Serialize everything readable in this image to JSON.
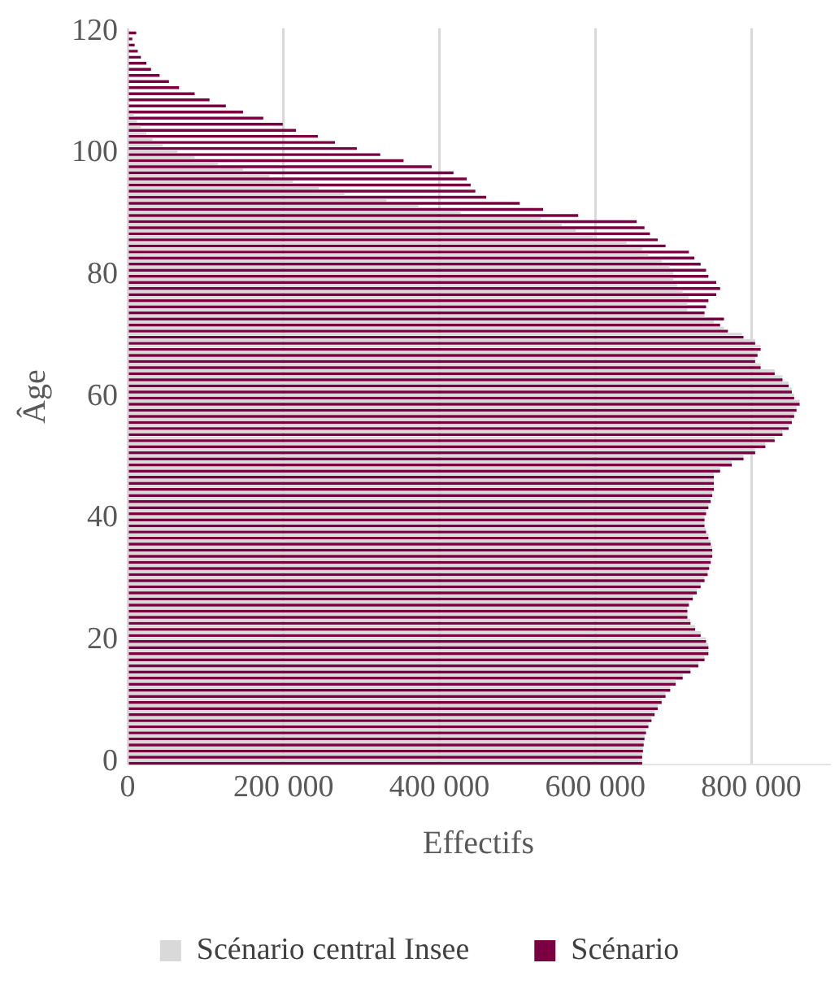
{
  "chart_data": {
    "type": "bar",
    "orientation": "horizontal",
    "xlabel": "Effectifs",
    "ylabel": "Âge",
    "categories": [
      "120",
      null,
      null,
      null,
      null,
      null,
      null,
      null,
      null,
      null,
      null,
      null,
      null,
      null,
      null,
      null,
      null,
      null,
      null,
      null,
      "100",
      null,
      null,
      null,
      null,
      null,
      null,
      null,
      null,
      null,
      null,
      null,
      null,
      null,
      null,
      null,
      null,
      null,
      null,
      null,
      "80",
      null,
      null,
      null,
      null,
      null,
      null,
      null,
      null,
      null,
      null,
      null,
      null,
      null,
      null,
      null,
      null,
      null,
      null,
      null,
      "60",
      null,
      null,
      null,
      null,
      null,
      null,
      null,
      null,
      null,
      null,
      null,
      null,
      null,
      null,
      null,
      null,
      null,
      null,
      null,
      "40",
      null,
      null,
      null,
      null,
      null,
      null,
      null,
      null,
      null,
      null,
      null,
      null,
      null,
      null,
      null,
      null,
      null,
      null,
      null,
      "20",
      null,
      null,
      null,
      null,
      null,
      null,
      null,
      null,
      null,
      null,
      null,
      null,
      null,
      null,
      null,
      null,
      null,
      null,
      null,
      "0"
    ],
    "series": [
      {
        "name": "Scénario central Insee",
        "color": "#d9d9d9",
        "values": [
          0,
          0,
          0,
          0,
          0,
          0,
          0,
          0,
          0,
          null,
          null,
          null,
          null,
          null,
          8000,
          12000,
          17000,
          24000,
          32000,
          45000,
          64000,
          86000,
          116000,
          148000,
          182000,
          212000,
          245000,
          278000,
          332000,
          373000,
          427000,
          530000,
          557000,
          575000,
          598000,
          640000,
          660000,
          668000,
          685000,
          695000,
          700000,
          700000,
          705000,
          712000,
          720000,
          718000,
          718000,
          740000,
          752000,
          765000,
          788000,
          805000,
          812000,
          808000,
          805000,
          812000,
          830000,
          840000,
          848000,
          852000,
          855000,
          862000,
          858000,
          855000,
          852000,
          848000,
          840000,
          830000,
          818000,
          805000,
          790000,
          775000,
          760000,
          752000,
          752000,
          752000,
          750000,
          748000,
          745000,
          742000,
          740000,
          740000,
          742000,
          745000,
          748000,
          750000,
          750000,
          748000,
          746000,
          744000,
          740000,
          735000,
          730000,
          725000,
          720000,
          718000,
          718000,
          722000,
          728000,
          735000,
          742000,
          745000,
          745000,
          740000,
          732000,
          722000,
          712000,
          703000,
          696000,
          690000,
          685000,
          680000,
          676000,
          672000,
          668000,
          665000,
          663000,
          662000,
          661000,
          660000,
          660000
        ]
      },
      {
        "name": "Scénario",
        "color": "#7b0041",
        "values": [
          11000,
          6000,
          9000,
          13000,
          17000,
          24000,
          30000,
          41000,
          53000,
          66000,
          86000,
          105000,
          126000,
          148000,
          174000,
          199000,
          216000,
          244000,
          266000,
          294000,
          324000,
          354000,
          390000,
          418000,
          435000,
          440000,
          446000,
          460000,
          503000,
          533000,
          578000,
          653000,
          663000,
          670000,
          680000,
          690000,
          720000,
          727000,
          735000,
          742000,
          745000,
          755000,
          760000,
          755000,
          745000,
          742000,
          740000,
          765000,
          760000,
          770000,
          790000,
          805000,
          812000,
          808000,
          805000,
          812000,
          830000,
          840000,
          848000,
          852000,
          855000,
          862000,
          858000,
          855000,
          852000,
          848000,
          840000,
          830000,
          818000,
          805000,
          790000,
          775000,
          760000,
          752000,
          752000,
          752000,
          750000,
          748000,
          745000,
          742000,
          740000,
          740000,
          742000,
          745000,
          748000,
          750000,
          750000,
          748000,
          746000,
          744000,
          740000,
          735000,
          730000,
          725000,
          720000,
          718000,
          718000,
          722000,
          728000,
          735000,
          742000,
          745000,
          745000,
          740000,
          732000,
          722000,
          712000,
          703000,
          696000,
          690000,
          685000,
          680000,
          676000,
          672000,
          668000,
          665000,
          663000,
          662000,
          661000,
          660000,
          660000
        ]
      }
    ],
    "xlim": [
      0,
      900000
    ],
    "xticks": [
      0,
      {
        "value": 200000,
        "label": "200 000"
      },
      {
        "value": 400000,
        "label": "400 000"
      },
      {
        "value": 600000,
        "label": "600 000"
      },
      {
        "value": 800000,
        "label": "800 000"
      }
    ],
    "grid": "x",
    "legend": "bottom"
  }
}
